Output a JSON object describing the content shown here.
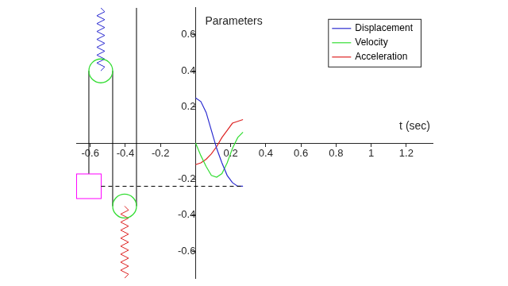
{
  "chart_data": {
    "type": "line",
    "title": "Parameters",
    "x_label": "t (sec)",
    "x": [
      0,
      0.03,
      0.06,
      0.09,
      0.12,
      0.15,
      0.18,
      0.21,
      0.24,
      0.27
    ],
    "series": [
      {
        "name": "Displacement",
        "color": "#2b2bd0",
        "values": [
          0.25,
          0.23,
          0.17,
          0.07,
          -0.03,
          -0.11,
          -0.18,
          -0.22,
          -0.24,
          -0.24
        ]
      },
      {
        "name": "Velocity",
        "color": "#33dd33",
        "values": [
          0,
          -0.07,
          -0.13,
          -0.18,
          -0.19,
          -0.17,
          -0.11,
          -0.03,
          0.03,
          0.06
        ]
      },
      {
        "name": "Acceleration",
        "color": "#dd2222",
        "values": [
          -0.12,
          -0.11,
          -0.09,
          -0.06,
          -0.02,
          0.03,
          0.07,
          0.11,
          0.12,
          0.13
        ]
      }
    ],
    "xlim": [
      -0.68,
      1.35
    ],
    "xticks": [
      -0.6,
      -0.4,
      -0.2,
      0.2,
      0.4,
      0.6,
      0.8,
      1,
      1.2
    ],
    "ylim": [
      -0.75,
      0.75
    ],
    "yticks": [
      -0.6,
      -0.4,
      -0.2,
      0.2,
      0.4,
      0.6
    ],
    "grid": false,
    "legend": "top-right"
  }
}
